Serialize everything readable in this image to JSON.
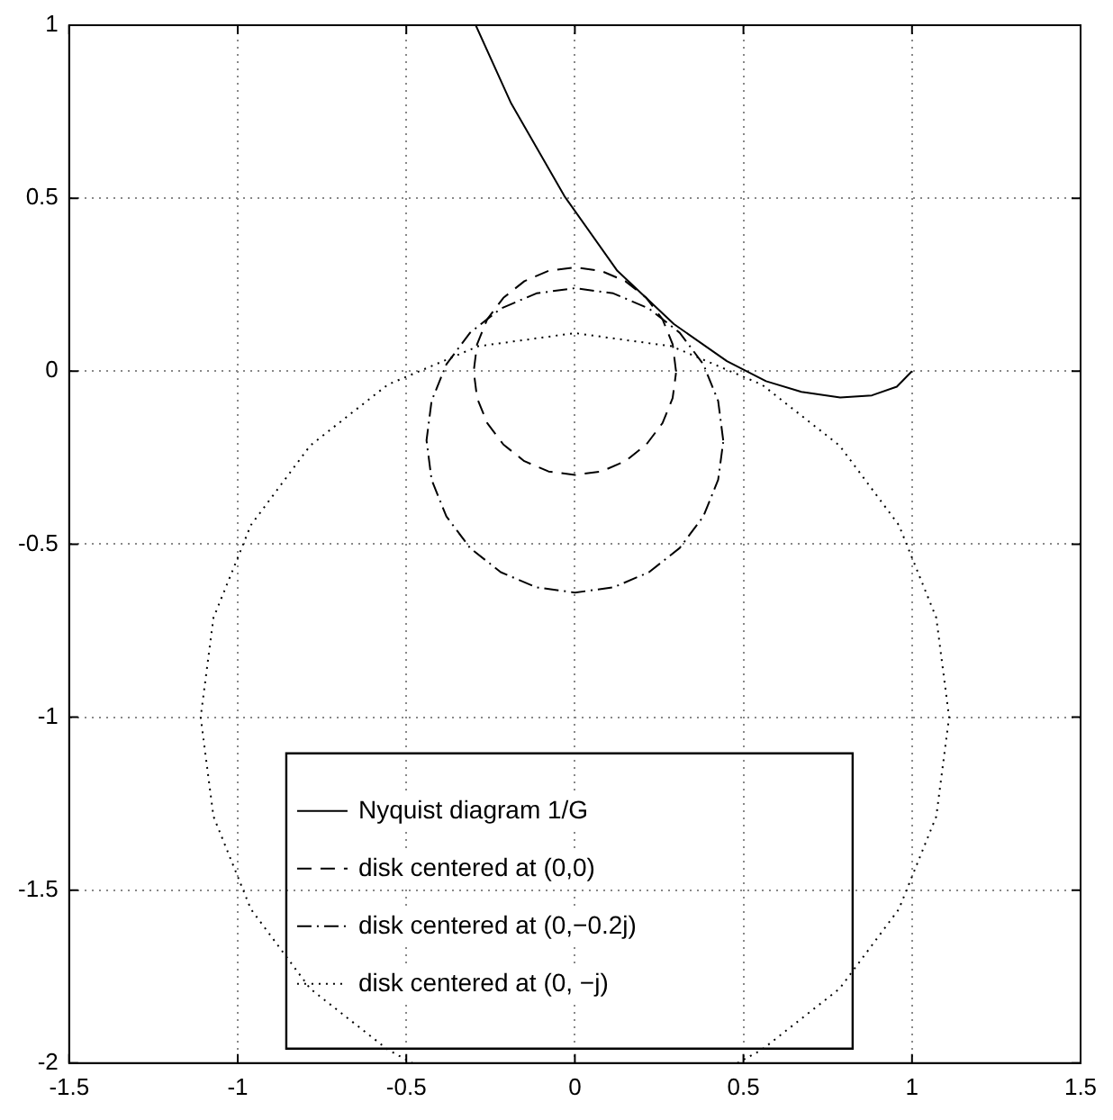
{
  "chart_data": {
    "type": "line",
    "xlim": [
      -1.5,
      1.5
    ],
    "ylim": [
      -2,
      1
    ],
    "xticks": [
      -1.5,
      -1,
      -0.5,
      0,
      0.5,
      1,
      1.5
    ],
    "yticks": [
      -2,
      -1.5,
      -1,
      -0.5,
      0,
      0.5,
      1
    ],
    "grid": true,
    "legend": "bottom",
    "marker": "none",
    "series": [
      {
        "name": "Nyquist diagram 1/G",
        "color": "#000000",
        "line_style": "solid",
        "x": [
          -0.294,
          -0.189,
          -0.031,
          0.126,
          0.294,
          0.451,
          0.567,
          0.672,
          0.787,
          0.881,
          0.955,
          1.0
        ],
        "values": [
          1.0,
          0.774,
          0.506,
          0.29,
          0.136,
          0.029,
          -0.029,
          -0.06,
          -0.076,
          -0.07,
          -0.045,
          0.0
        ]
      },
      {
        "name": "disk centered at (0,0)",
        "color": "#000000",
        "line_style": "dashed",
        "x": [
          0.3,
          0.29,
          0.26,
          0.212,
          0.15,
          0.078,
          0,
          -0.078,
          -0.15,
          -0.212,
          -0.26,
          -0.29,
          -0.3,
          -0.29,
          -0.26,
          -0.212,
          -0.15,
          -0.078,
          0,
          0.078,
          0.15,
          0.212,
          0.26,
          0.29,
          0.3
        ],
        "values": [
          0,
          0.078,
          0.15,
          0.212,
          0.26,
          0.29,
          0.3,
          0.29,
          0.26,
          0.212,
          0.15,
          0.078,
          0,
          -0.078,
          -0.15,
          -0.212,
          -0.26,
          -0.29,
          -0.3,
          -0.29,
          -0.26,
          -0.212,
          -0.15,
          -0.078,
          -0.005
        ]
      },
      {
        "name": "disk centered at (0,−0.2j)",
        "color": "#000000",
        "line_style": "dashdot",
        "x": [
          0.44,
          0.425,
          0.381,
          0.311,
          0.22,
          0.114,
          0,
          -0.114,
          -0.22,
          -0.311,
          -0.381,
          -0.425,
          -0.44,
          -0.425,
          -0.381,
          -0.311,
          -0.22,
          -0.114,
          0,
          0.114,
          0.22,
          0.311,
          0.381,
          0.425,
          0.44
        ],
        "values": [
          -0.2,
          -0.086,
          0.02,
          0.111,
          0.181,
          0.225,
          0.24,
          0.225,
          0.181,
          0.111,
          0.02,
          -0.086,
          -0.2,
          -0.314,
          -0.42,
          -0.511,
          -0.581,
          -0.625,
          -0.64,
          -0.625,
          -0.581,
          -0.511,
          -0.42,
          -0.314,
          -0.205
        ]
      },
      {
        "name": "disk centered at (0, −j)",
        "color": "#000000",
        "line_style": "dotted",
        "x": [
          0.482,
          0.555,
          0.785,
          0.961,
          1.072,
          1.11,
          1.072,
          0.961,
          0.785,
          0.555,
          0.287,
          0,
          -0.287,
          -0.555,
          -0.785,
          -0.961,
          -1.072,
          -1.11,
          -1.072,
          -0.961,
          -0.785,
          -0.555,
          -0.482
        ],
        "values": [
          -2.0,
          -1.961,
          -1.785,
          -1.555,
          -1.287,
          -1,
          -0.713,
          -0.445,
          -0.215,
          -0.039,
          0.072,
          0.11,
          0.072,
          -0.039,
          -0.215,
          -0.445,
          -0.713,
          -1,
          -1.287,
          -1.555,
          -1.785,
          -1.961,
          -2.0
        ]
      }
    ]
  }
}
